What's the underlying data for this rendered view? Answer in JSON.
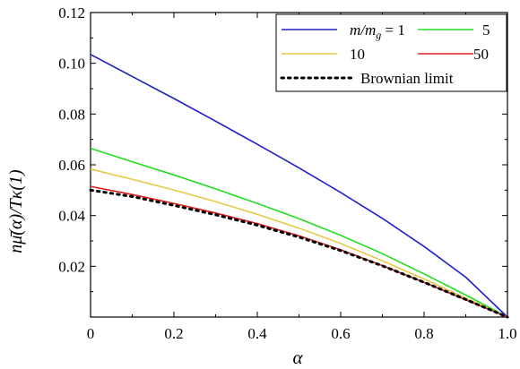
{
  "chart_data": {
    "type": "line",
    "title": "",
    "xlabel": "α",
    "ylabel": "nμ̄(α)/Tκ(1)",
    "xlim": [
      0,
      1.0
    ],
    "ylim": [
      0,
      0.12
    ],
    "x_ticks": [
      0,
      0.2,
      0.4,
      0.6,
      0.8,
      1.0
    ],
    "x_tick_labels": [
      "0",
      "0.2",
      "0.4",
      "0.6",
      "0.8",
      "1.0"
    ],
    "y_ticks": [
      0.02,
      0.04,
      0.06,
      0.08,
      0.1,
      0.12
    ],
    "y_tick_labels": [
      "0.02",
      "0.04",
      "0.06",
      "0.08",
      "0.10",
      "0.12"
    ],
    "grid": false,
    "legend_position": "top-right",
    "legend_prefix": "m/m",
    "legend_subscript": "g",
    "legend_suffix": " = 1",
    "x": [
      0,
      0.1,
      0.2,
      0.3,
      0.4,
      0.5,
      0.6,
      0.7,
      0.8,
      0.9,
      1.0
    ],
    "series": [
      {
        "name": "1",
        "color": "#1f1fcc",
        "style": "solid",
        "values": [
          0.1035,
          0.0948,
          0.0861,
          0.0772,
          0.0681,
          0.0588,
          0.0491,
          0.0389,
          0.0278,
          0.0157,
          0.0
        ]
      },
      {
        "name": "5",
        "color": "#22dd22",
        "style": "solid",
        "values": [
          0.0665,
          0.0612,
          0.056,
          0.0505,
          0.0448,
          0.0388,
          0.0322,
          0.025,
          0.017,
          0.0087,
          0.0
        ]
      },
      {
        "name": "10",
        "color": "#e8c84a",
        "style": "solid",
        "values": [
          0.0583,
          0.0543,
          0.0501,
          0.0455,
          0.0405,
          0.035,
          0.029,
          0.0222,
          0.015,
          0.0075,
          0.0
        ]
      },
      {
        "name": "50",
        "color": "#dd1f1f",
        "style": "solid",
        "values": [
          0.0515,
          0.0483,
          0.0448,
          0.041,
          0.0368,
          0.032,
          0.0265,
          0.0203,
          0.0137,
          0.0068,
          0.0
        ]
      },
      {
        "name": "Brownian limit",
        "color": "#000000",
        "style": "dotted",
        "values": [
          0.05,
          0.0475,
          0.044,
          0.0403,
          0.0362,
          0.0315,
          0.0262,
          0.0202,
          0.0137,
          0.0069,
          0.0
        ]
      }
    ]
  }
}
